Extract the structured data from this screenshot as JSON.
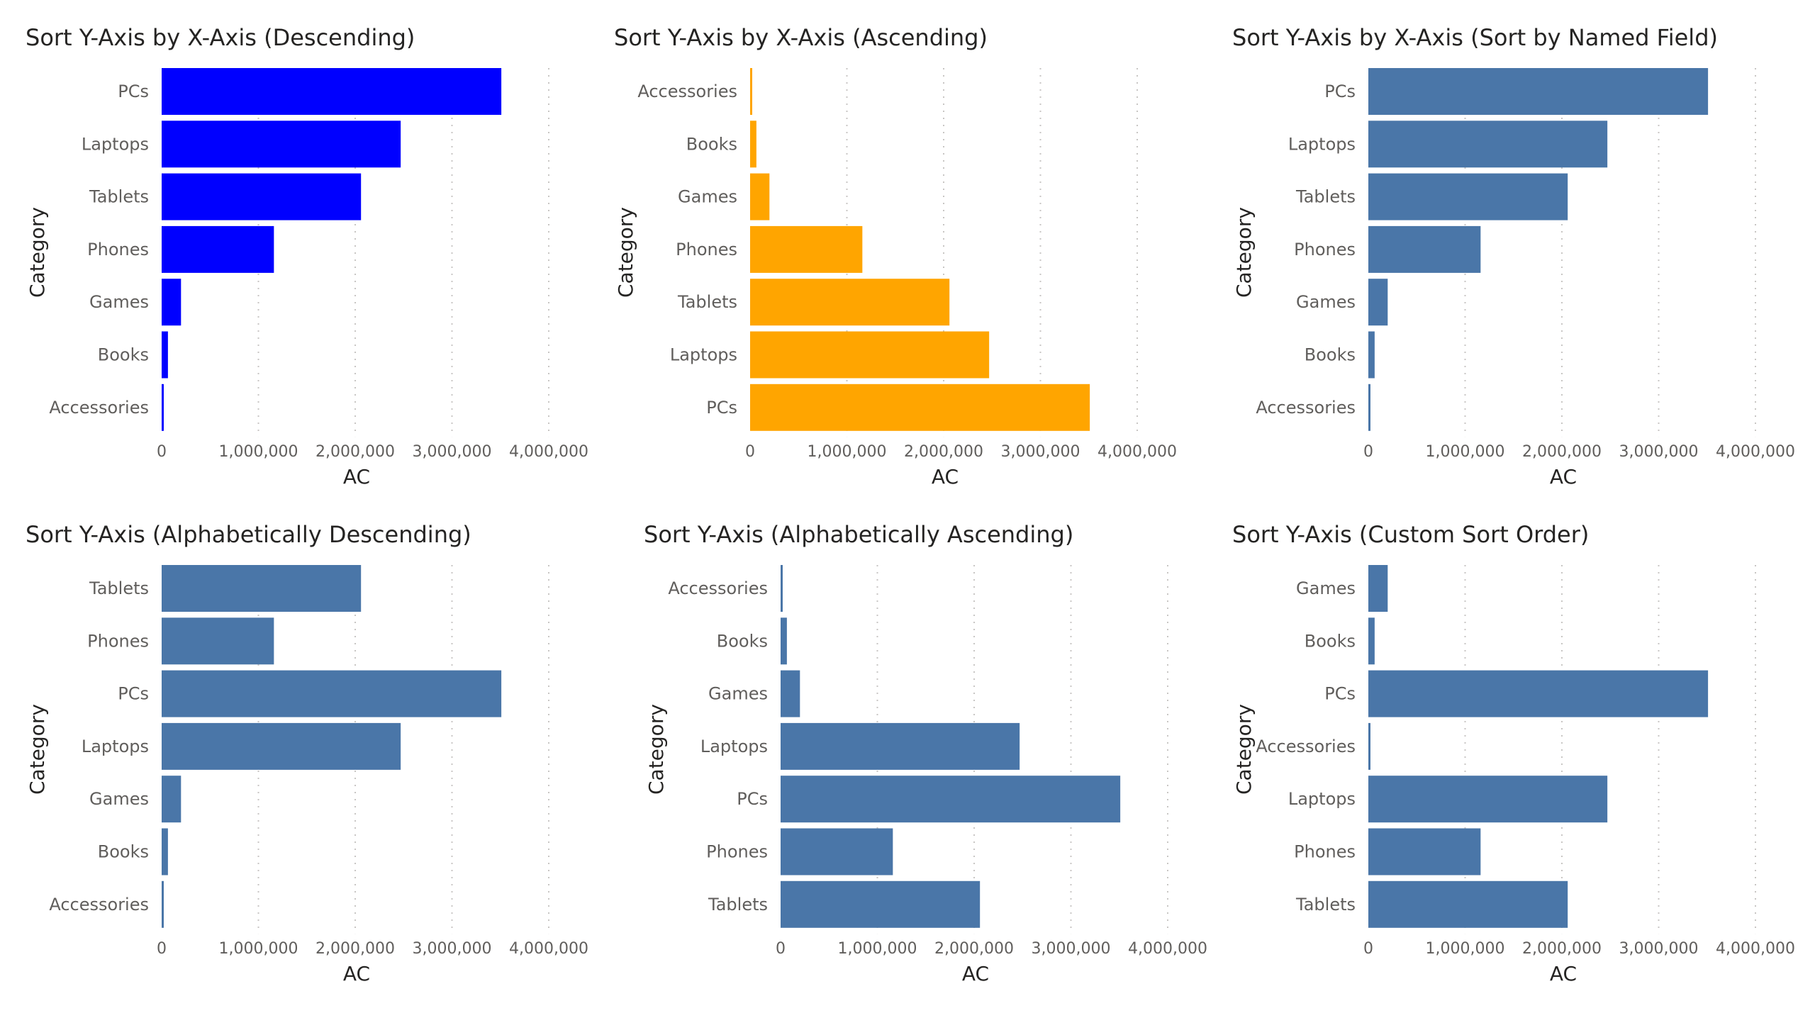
{
  "chart_data": [
    {
      "type": "bar",
      "orientation": "horizontal",
      "title": "Sort Y-Axis by X-Axis (Descending)",
      "xlabel": "AC",
      "ylabel": "Category",
      "xlim": [
        0,
        4000000
      ],
      "xticks": [
        "0",
        "1,000,000",
        "2,000,000",
        "3,000,000",
        "4,000,000"
      ],
      "grid": true,
      "color": "#0000ff",
      "categories": [
        "PCs",
        "Laptops",
        "Tablets",
        "Phones",
        "Games",
        "Books",
        "Accessories"
      ],
      "values": [
        3510000,
        2470000,
        2060000,
        1160000,
        200000,
        65000,
        20000
      ]
    },
    {
      "type": "bar",
      "orientation": "horizontal",
      "title": "Sort Y-Axis by X-Axis (Ascending)",
      "xlabel": "AC",
      "ylabel": "Category",
      "xlim": [
        0,
        4000000
      ],
      "xticks": [
        "0",
        "1,000,000",
        "2,000,000",
        "3,000,000",
        "4,000,000"
      ],
      "grid": true,
      "color": "#ffa500",
      "categories": [
        "Accessories",
        "Books",
        "Games",
        "Phones",
        "Tablets",
        "Laptops",
        "PCs"
      ],
      "values": [
        20000,
        65000,
        200000,
        1160000,
        2060000,
        2470000,
        3510000
      ]
    },
    {
      "type": "bar",
      "orientation": "horizontal",
      "title": "Sort Y-Axis by X-Axis (Sort by Named Field)",
      "xlabel": "AC",
      "ylabel": "Category",
      "xlim": [
        0,
        4000000
      ],
      "xticks": [
        "0",
        "1,000,000",
        "2,000,000",
        "3,000,000",
        "4,000,000"
      ],
      "grid": true,
      "color": "#4a76a8",
      "categories": [
        "PCs",
        "Laptops",
        "Tablets",
        "Phones",
        "Games",
        "Books",
        "Accessories"
      ],
      "values": [
        3510000,
        2470000,
        2060000,
        1160000,
        200000,
        65000,
        20000
      ]
    },
    {
      "type": "bar",
      "orientation": "horizontal",
      "title": "Sort Y-Axis (Alphabetically Descending)",
      "xlabel": "AC",
      "ylabel": "Category",
      "xlim": [
        0,
        4000000
      ],
      "xticks": [
        "0",
        "1,000,000",
        "2,000,000",
        "3,000,000",
        "4,000,000"
      ],
      "grid": true,
      "color": "#4a76a8",
      "categories": [
        "Tablets",
        "Phones",
        "PCs",
        "Laptops",
        "Games",
        "Books",
        "Accessories"
      ],
      "values": [
        2060000,
        1160000,
        3510000,
        2470000,
        200000,
        65000,
        20000
      ]
    },
    {
      "type": "bar",
      "orientation": "horizontal",
      "title": "Sort Y-Axis (Alphabetically Ascending)",
      "xlabel": "AC",
      "ylabel": "Category",
      "xlim": [
        0,
        4000000
      ],
      "xticks": [
        "0",
        "1,000,000",
        "2,000,000",
        "3,000,000",
        "4,000,000"
      ],
      "grid": true,
      "color": "#4a76a8",
      "categories": [
        "Accessories",
        "Books",
        "Games",
        "Laptops",
        "PCs",
        "Phones",
        "Tablets"
      ],
      "values": [
        20000,
        65000,
        200000,
        2470000,
        3510000,
        1160000,
        2060000
      ]
    },
    {
      "type": "bar",
      "orientation": "horizontal",
      "title": "Sort Y-Axis (Custom Sort Order)",
      "xlabel": "AC",
      "ylabel": "Category",
      "xlim": [
        0,
        4000000
      ],
      "xticks": [
        "0",
        "1,000,000",
        "2,000,000",
        "3,000,000",
        "4,000,000"
      ],
      "grid": true,
      "color": "#4a76a8",
      "categories": [
        "Games",
        "Books",
        "PCs",
        "Accessories",
        "Laptops",
        "Phones",
        "Tablets"
      ],
      "values": [
        200000,
        65000,
        3510000,
        20000,
        2470000,
        1160000,
        2060000
      ]
    }
  ]
}
